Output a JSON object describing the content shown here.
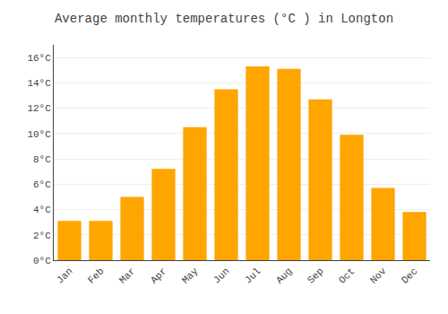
{
  "chart_data": {
    "type": "bar",
    "title": "Average monthly temperatures (°C ) in Longton",
    "categories": [
      "Jan",
      "Feb",
      "Mar",
      "Apr",
      "May",
      "Jun",
      "Jul",
      "Aug",
      "Sep",
      "Oct",
      "Nov",
      "Dec"
    ],
    "values": [
      3.1,
      3.1,
      5.0,
      7.2,
      10.5,
      13.5,
      15.3,
      15.1,
      12.7,
      9.9,
      5.7,
      3.8
    ],
    "color": "#FFA500",
    "ylim": [
      0,
      17
    ],
    "yticks": [
      {
        "value": 0,
        "label": "0°C"
      },
      {
        "value": 2,
        "label": "2°C"
      },
      {
        "value": 4,
        "label": "4°C"
      },
      {
        "value": 6,
        "label": "6°C"
      },
      {
        "value": 8,
        "label": "8°C"
      },
      {
        "value": 10,
        "label": "10°C"
      },
      {
        "value": 12,
        "label": "12°C"
      },
      {
        "value": 14,
        "label": "14°C"
      },
      {
        "value": 16,
        "label": "16°C"
      }
    ],
    "grid": true
  }
}
